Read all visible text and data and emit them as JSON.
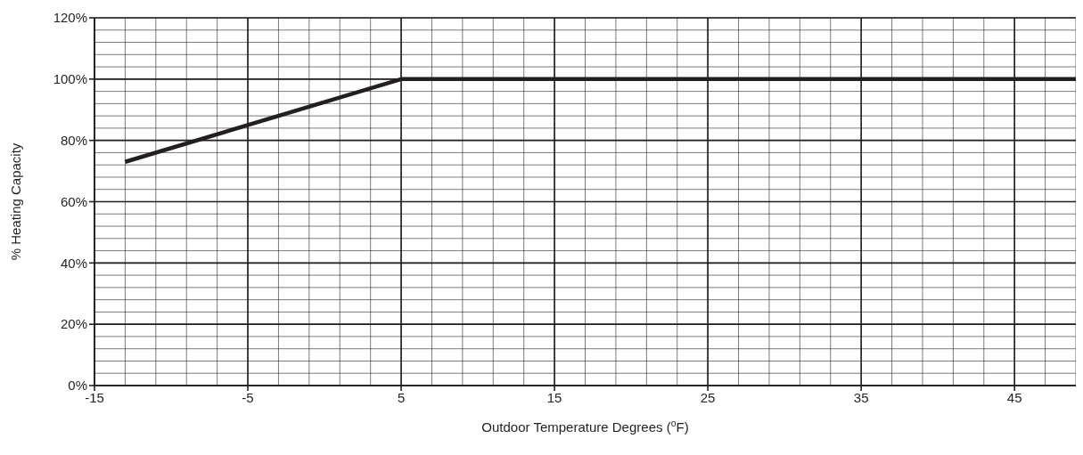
{
  "chart_data": {
    "type": "line",
    "xlabel": "Outdoor Temperature Degrees ($^{o}$F)",
    "ylabel": "% Heating Capacity",
    "x": [
      -13,
      5,
      49
    ],
    "series": [
      {
        "color": "#231f20",
        "values": [
          73,
          100,
          100
        ]
      }
    ],
    "xlim": [
      -15,
      49
    ],
    "xticks": [
      -15,
      -5,
      5,
      15,
      25,
      35,
      45
    ],
    "ylim": [
      0,
      120
    ],
    "yticks": [
      {
        "value": 0,
        "label": "0%"
      },
      {
        "value": 20,
        "label": "20%"
      },
      {
        "value": 40,
        "label": "40%"
      },
      {
        "value": 60,
        "label": "60%"
      },
      {
        "value": 80,
        "label": "80%"
      },
      {
        "value": 100,
        "label": "100%"
      },
      {
        "value": 120,
        "label": "120%"
      }
    ],
    "grid": true,
    "marker": "none",
    "line_style": "solid",
    "legend": false
  }
}
